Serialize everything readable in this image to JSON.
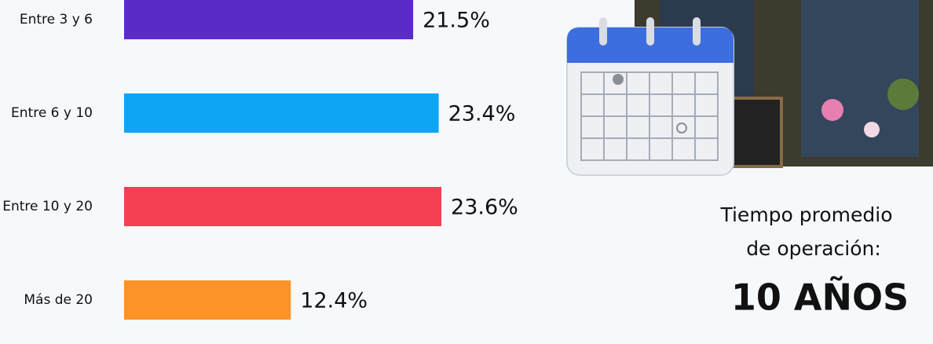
{
  "chart_data": {
    "type": "hbar",
    "categories": [
      "Entre 3 y 6",
      "Entre 6 y 10",
      "Entre 10 y 20",
      "Más de 20"
    ],
    "values": [
      21.5,
      23.4,
      23.6,
      12.4
    ],
    "value_labels": [
      "21.5%",
      "23.4%",
      "23.6%",
      "12.4%"
    ],
    "colors": [
      "#5b2bc8",
      "#0ea5f5",
      "#f43f55",
      "#fb9328"
    ]
  },
  "summary": {
    "label_lines": [
      "Tiempo promedio",
      "de operación:"
    ],
    "value": "10 AÑOS"
  }
}
